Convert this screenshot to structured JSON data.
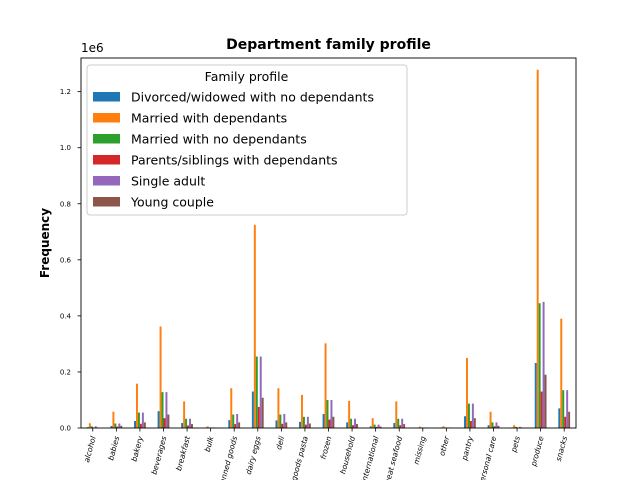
{
  "chart_data": {
    "type": "bar",
    "title": "Department family profile",
    "ylabel": "Frequency",
    "xlabel": "",
    "y_offset_label": "1e6",
    "ylim": [
      0,
      1.32
    ],
    "yticks": [
      0.0,
      0.2,
      0.4,
      0.6,
      0.8,
      1.0,
      1.2
    ],
    "ytick_labels": [
      "0.0",
      "0.2",
      "0.4",
      "0.6",
      "0.8",
      "1.0",
      "1.2"
    ],
    "categories": [
      "alcohol",
      "babies",
      "bakery",
      "beverages",
      "breakfast",
      "bulk",
      "canned goods",
      "dairy eggs",
      "deli",
      "dry goods pasta",
      "frozen",
      "household",
      "international",
      "meat seafood",
      "missing",
      "other",
      "pantry",
      "personal care",
      "pets",
      "produce",
      "snacks"
    ],
    "legend": {
      "title": "Family profile",
      "placement": "upper-left"
    },
    "series": [
      {
        "name": "Divorced/widowed with no dependants",
        "color": "#1f77b4",
        "values": [
          0.003,
          0.007,
          0.025,
          0.06,
          0.018,
          0.002,
          0.028,
          0.13,
          0.027,
          0.022,
          0.05,
          0.02,
          0.006,
          0.018,
          0.001,
          0.002,
          0.042,
          0.01,
          0.002,
          0.232,
          0.07
        ]
      },
      {
        "name": "Married with dependants",
        "color": "#ff7f0e",
        "values": [
          0.017,
          0.058,
          0.158,
          0.362,
          0.095,
          0.006,
          0.142,
          0.725,
          0.142,
          0.118,
          0.302,
          0.097,
          0.035,
          0.095,
          0.005,
          0.006,
          0.25,
          0.058,
          0.01,
          1.278,
          0.39
        ]
      },
      {
        "name": "Married with no dependants",
        "color": "#2ca02c",
        "values": [
          0.006,
          0.016,
          0.055,
          0.128,
          0.033,
          0.002,
          0.048,
          0.255,
          0.048,
          0.04,
          0.1,
          0.033,
          0.012,
          0.033,
          0.002,
          0.002,
          0.087,
          0.02,
          0.004,
          0.445,
          0.135
        ]
      },
      {
        "name": "Parents/siblings with dependants",
        "color": "#d62728",
        "values": [
          0.001,
          0.005,
          0.015,
          0.035,
          0.009,
          0.001,
          0.014,
          0.075,
          0.015,
          0.012,
          0.03,
          0.01,
          0.004,
          0.01,
          0.001,
          0.001,
          0.025,
          0.006,
          0.001,
          0.13,
          0.04
        ]
      },
      {
        "name": "Single adult",
        "color": "#9467bd",
        "values": [
          0.006,
          0.016,
          0.055,
          0.128,
          0.033,
          0.002,
          0.05,
          0.255,
          0.05,
          0.04,
          0.1,
          0.033,
          0.012,
          0.033,
          0.002,
          0.002,
          0.087,
          0.02,
          0.004,
          0.45,
          0.135
        ]
      },
      {
        "name": "Young couple",
        "color": "#8c564b",
        "values": [
          0.002,
          0.008,
          0.02,
          0.048,
          0.014,
          0.001,
          0.02,
          0.108,
          0.02,
          0.016,
          0.04,
          0.014,
          0.005,
          0.014,
          0.001,
          0.001,
          0.035,
          0.008,
          0.002,
          0.19,
          0.058
        ]
      }
    ]
  }
}
